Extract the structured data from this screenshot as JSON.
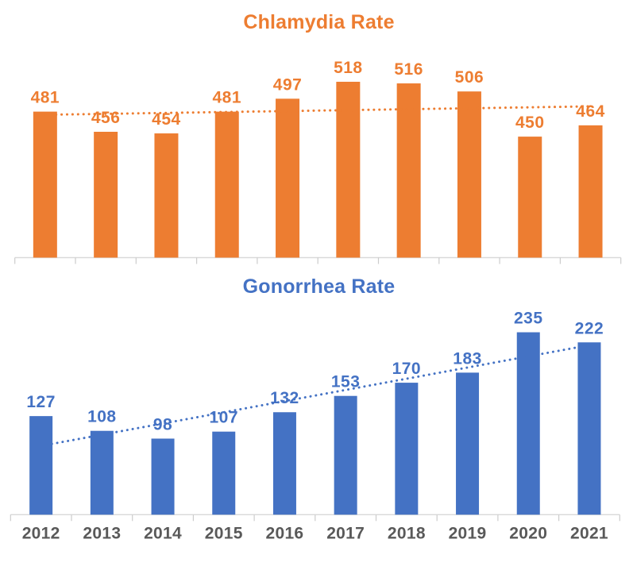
{
  "chart_data": [
    {
      "type": "bar",
      "title": "Chlamydia Rate",
      "title_color": "#ED7D31",
      "series_color": "#ED7D31",
      "label_color": "#ED7D31",
      "categories": [
        "2012",
        "2013",
        "2014",
        "2015",
        "2016",
        "2017",
        "2018",
        "2019",
        "2020",
        "2021"
      ],
      "values": [
        481,
        456,
        454,
        481,
        497,
        518,
        516,
        506,
        450,
        464
      ],
      "data_labels": "outside-end",
      "trendline": {
        "type": "linear",
        "style": "dotted",
        "color": "#ED7D31"
      },
      "ylim": [
        300,
        550
      ],
      "grid": false,
      "legend": "none",
      "x_axis_labels_visible": false,
      "axis_color": "#D9D9D9",
      "tick_color": "#CCCCCC"
    },
    {
      "type": "bar",
      "title": "Gonorrhea Rate",
      "title_color": "#4472C4",
      "series_color": "#4472C4",
      "label_color": "#4472C4",
      "categories": [
        "2012",
        "2013",
        "2014",
        "2015",
        "2016",
        "2017",
        "2018",
        "2019",
        "2020",
        "2021"
      ],
      "values": [
        127,
        108,
        98,
        107,
        132,
        153,
        170,
        183,
        235,
        222
      ],
      "data_labels": "outside-end",
      "trendline": {
        "type": "linear",
        "style": "dotted",
        "color": "#4472C4"
      },
      "ylim": [
        0,
        260
      ],
      "grid": false,
      "legend": "none",
      "x_axis_labels_visible": true,
      "x_label_color": "#595959",
      "axis_color": "#D9D9D9",
      "tick_color": "#CCCCCC"
    }
  ]
}
